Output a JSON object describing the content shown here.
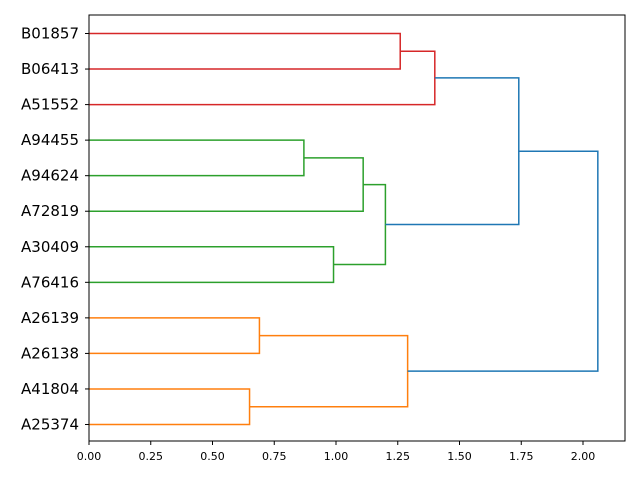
{
  "chart_data": {
    "type": "dendrogram",
    "orientation": "horizontal",
    "title": "",
    "xlabel": "",
    "ylabel": "",
    "xlim": [
      0,
      2.17
    ],
    "xticks": [
      0.0,
      0.25,
      0.5,
      0.75,
      1.0,
      1.25,
      1.5,
      1.75,
      2.0
    ],
    "xtick_labels": [
      "0.00",
      "0.25",
      "0.50",
      "0.75",
      "1.00",
      "1.25",
      "1.50",
      "1.75",
      "2.00"
    ],
    "leaves": [
      "B01857",
      "B06413",
      "A51552",
      "A94455",
      "A94624",
      "A72819",
      "A30409",
      "A76416",
      "A26139",
      "A26138",
      "A41804",
      "A25374"
    ],
    "cluster_colors": {
      "red": "#d62728",
      "green": "#2ca02c",
      "orange": "#ff7f0e",
      "blue": "#1f77b4"
    },
    "links": [
      {
        "top": 0,
        "bottom": 1,
        "height": 1.26,
        "color": "red"
      },
      {
        "top": "B01857+B06413",
        "bottom": 2,
        "height": 1.4,
        "color": "red"
      },
      {
        "top": 3,
        "bottom": 4,
        "height": 0.87,
        "color": "green"
      },
      {
        "top": "A94455+A94624",
        "bottom": 5,
        "height": 1.11,
        "color": "green"
      },
      {
        "top": 6,
        "bottom": 7,
        "height": 0.99,
        "color": "green"
      },
      {
        "top": "A94455+A94624+A72819",
        "bottom": "A30409+A76416",
        "height": 1.2,
        "color": "green"
      },
      {
        "top": 8,
        "bottom": 9,
        "height": 0.69,
        "color": "orange"
      },
      {
        "top": 10,
        "bottom": 11,
        "height": 0.65,
        "color": "orange"
      },
      {
        "top": "A26139+A26138",
        "bottom": "A41804+A25374",
        "height": 1.29,
        "color": "orange"
      },
      {
        "top": "red-cluster",
        "bottom": "green-cluster",
        "height": 1.74,
        "color": "blue"
      },
      {
        "top": "red+green",
        "bottom": "orange-cluster",
        "height": 2.06,
        "color": "blue"
      }
    ]
  }
}
